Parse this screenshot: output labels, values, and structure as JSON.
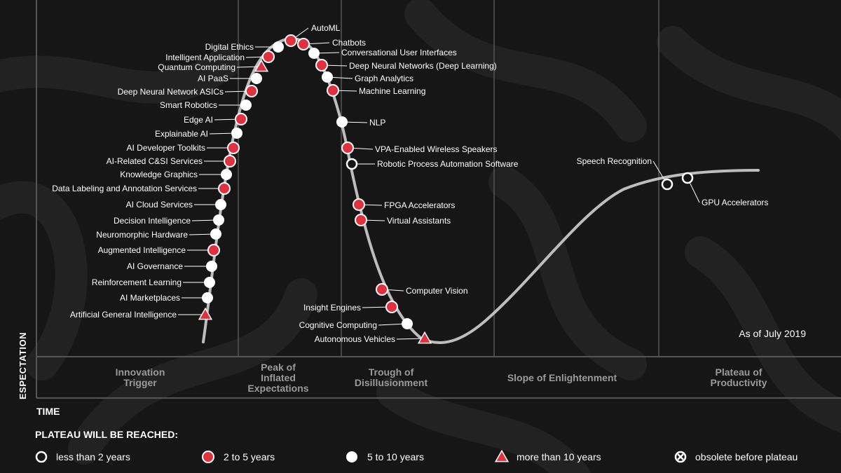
{
  "as_of": "As of July 2019",
  "axis": {
    "y_label": "ESPECTATION",
    "x_label": "TIME"
  },
  "phases": [
    {
      "id": "innovation",
      "lines": [
        "Innovation",
        "Trigger"
      ]
    },
    {
      "id": "peak",
      "lines": [
        "Peak of",
        "Inflated",
        "Expectations"
      ]
    },
    {
      "id": "trough",
      "lines": [
        "Trough of",
        "Disillusionment"
      ]
    },
    {
      "id": "slope",
      "lines": [
        "Slope of Enlightenment"
      ]
    },
    {
      "id": "plateau",
      "lines": [
        "Plateau of",
        "Productivity"
      ]
    }
  ],
  "legend": {
    "title": "PLATEAU  WILL BE REACHED:",
    "items": [
      {
        "marker": "open-circle",
        "label": "less than 2 years"
      },
      {
        "marker": "red-circle",
        "label": "2 to 5 years"
      },
      {
        "marker": "white-circle",
        "label": "5 to 10 years"
      },
      {
        "marker": "red-triangle",
        "label": "more than 10 years"
      },
      {
        "marker": "x-circle",
        "label": "obsolete before plateau"
      }
    ]
  },
  "colors": {
    "background": "#161616",
    "curve": "#bdbdbd",
    "red": "#e0313f",
    "white": "#ffffff",
    "grid": "#555555",
    "phase_text": "#9a9a9a"
  },
  "technologies": [
    {
      "name": "AutoML",
      "marker": "red-circle"
    },
    {
      "name": "Chatbots",
      "marker": "red-circle"
    },
    {
      "name": "Digital Ethics",
      "marker": "white-circle"
    },
    {
      "name": "Conversational User Interfaces",
      "marker": "white-circle"
    },
    {
      "name": "Intelligent Application",
      "marker": "red-circle"
    },
    {
      "name": "Deep Neural Networks (Deep Learning)",
      "marker": "red-circle"
    },
    {
      "name": "Quantum Computing",
      "marker": "red-triangle"
    },
    {
      "name": "Graph Analytics",
      "marker": "white-circle"
    },
    {
      "name": "AI PaaS",
      "marker": "white-circle"
    },
    {
      "name": "Machine Learning",
      "marker": "red-circle"
    },
    {
      "name": "Deep Neural Network ASICs",
      "marker": "red-circle"
    },
    {
      "name": "Smart Robotics",
      "marker": "white-circle"
    },
    {
      "name": "Edge AI",
      "marker": "red-circle"
    },
    {
      "name": "NLP",
      "marker": "white-circle"
    },
    {
      "name": "Explainable AI",
      "marker": "white-circle"
    },
    {
      "name": "AI Developer Toolkits",
      "marker": "red-circle"
    },
    {
      "name": "VPA-Enabled Wireless Speakers",
      "marker": "red-circle"
    },
    {
      "name": "AI-Related C&SI Services",
      "marker": "red-circle"
    },
    {
      "name": "Robotic Process Automation Software",
      "marker": "open-circle"
    },
    {
      "name": "Knowledge Graphics",
      "marker": "white-circle"
    },
    {
      "name": "Speech Recognition",
      "marker": "open-circle"
    },
    {
      "name": "GPU Accelerators",
      "marker": "open-circle"
    },
    {
      "name": "Data Labeling and Annotation Services",
      "marker": "red-circle"
    },
    {
      "name": "AI Cloud Services",
      "marker": "white-circle"
    },
    {
      "name": "FPGA Accelerators",
      "marker": "red-circle"
    },
    {
      "name": "Decision Intelligence",
      "marker": "white-circle"
    },
    {
      "name": "Virtual Assistants",
      "marker": "red-circle"
    },
    {
      "name": "Neuromorphic Hardware",
      "marker": "white-circle"
    },
    {
      "name": "Augmented Intelligence",
      "marker": "red-circle"
    },
    {
      "name": "AI Governance",
      "marker": "white-circle"
    },
    {
      "name": "Reinforcement Learning",
      "marker": "white-circle"
    },
    {
      "name": "Computer Vision",
      "marker": "red-circle"
    },
    {
      "name": "AI Marketplaces",
      "marker": "white-circle"
    },
    {
      "name": "Insight Engines",
      "marker": "red-circle"
    },
    {
      "name": "Artificial General Intelligence",
      "marker": "red-triangle"
    },
    {
      "name": "Cognitive Computing",
      "marker": "white-circle"
    },
    {
      "name": "Autonomous Vehicles",
      "marker": "red-triangle"
    }
  ]
}
